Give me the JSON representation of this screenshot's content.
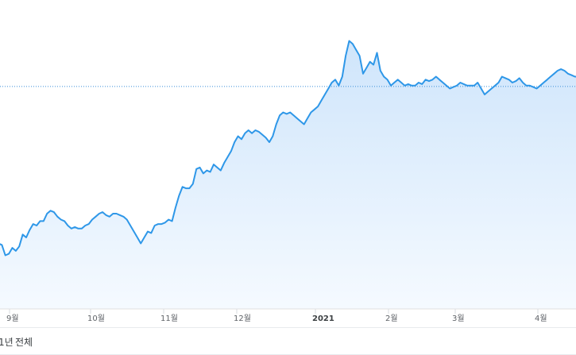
{
  "chart_data": {
    "type": "area",
    "line_color": "#2e97e8",
    "fill_color": "#d2e7fb",
    "reference_line_color": "#3a8fd9",
    "x_ticks": [
      {
        "label": "9월",
        "bold": false
      },
      {
        "label": "10월",
        "bold": false
      },
      {
        "label": "11월",
        "bold": false
      },
      {
        "label": "12월",
        "bold": false
      },
      {
        "label": "2021",
        "bold": true
      },
      {
        "label": "2월",
        "bold": false
      },
      {
        "label": "3월",
        "bold": false
      },
      {
        "label": "4월",
        "bold": false
      }
    ],
    "ylim": [
      0,
      100
    ],
    "reference_value": 74.7,
    "values": [
      22,
      21.5,
      18,
      18.5,
      20.5,
      19.5,
      21,
      25,
      24,
      26.5,
      28.5,
      28,
      29.5,
      29.5,
      32,
      33,
      32.5,
      31,
      30,
      29.5,
      28,
      27,
      27.5,
      27,
      27,
      28,
      28.5,
      30,
      31,
      32,
      32.5,
      31.5,
      31,
      32,
      32,
      31.5,
      31,
      30,
      28,
      26,
      24,
      22,
      24,
      26,
      25.5,
      28,
      28.5,
      28.5,
      29,
      30,
      29.5,
      34,
      38,
      41,
      40.5,
      40.5,
      42,
      47,
      47.5,
      45.5,
      46.5,
      46,
      48.5,
      47.5,
      46.5,
      49,
      51,
      53,
      56,
      58,
      57,
      59,
      60,
      59,
      60,
      59.5,
      58.5,
      57.5,
      56,
      58,
      62,
      65,
      66,
      65.5,
      66,
      65,
      64,
      63,
      62,
      64,
      66,
      67,
      68,
      70,
      72,
      74,
      76,
      77,
      75,
      78,
      85,
      90,
      89,
      87,
      85,
      79,
      81,
      83,
      82,
      86,
      80,
      78,
      77,
      75,
      76,
      77,
      76,
      75,
      75.5,
      75,
      75,
      76,
      75.5,
      77,
      76.5,
      77,
      78,
      77,
      76,
      75,
      74,
      74.5,
      75,
      76,
      75.5,
      75,
      75,
      75,
      76,
      74,
      72,
      73,
      74,
      75,
      76,
      78,
      77.5,
      77,
      76,
      76.5,
      77.5,
      76,
      75,
      75,
      74.5,
      74,
      75,
      76,
      77,
      78,
      79,
      80,
      80.5,
      80,
      79,
      78.5,
      78,
      78
    ]
  },
  "range_tabs": [
    {
      "label": "1년"
    },
    {
      "label": "전체"
    }
  ]
}
